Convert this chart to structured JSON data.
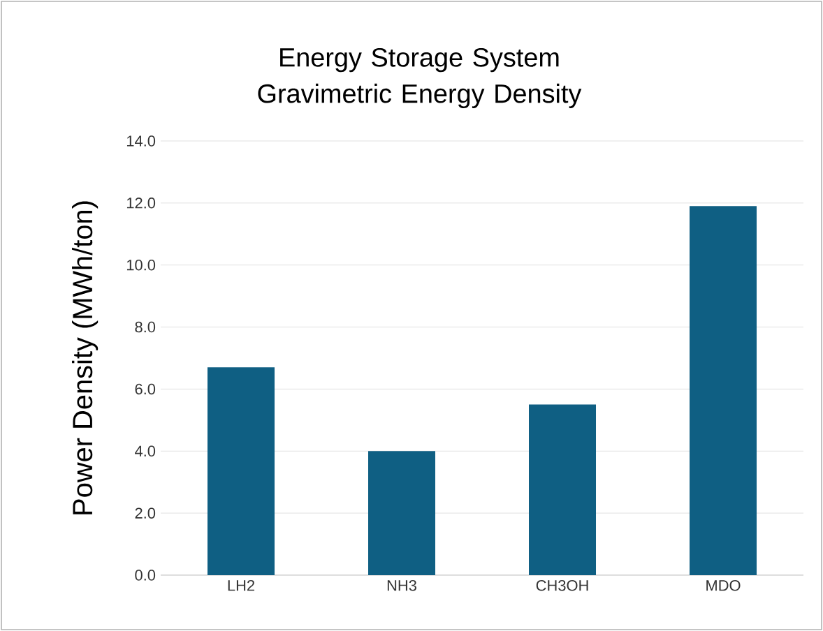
{
  "chart_data": {
    "type": "bar",
    "title": "Energy Storage System Gravimetric Energy Density",
    "ylabel": "Power Density (MWh/ton)",
    "categories": [
      "LH2",
      "NH3",
      "CH3OH",
      "MDO"
    ],
    "values": [
      6.7,
      4.0,
      5.5,
      11.9
    ],
    "color": "#0f5f83",
    "ylim": [
      0,
      14
    ],
    "yticks": [
      {
        "value": 0,
        "label": "0.0"
      },
      {
        "value": 2,
        "label": "2.0"
      },
      {
        "value": 4,
        "label": "4.0"
      },
      {
        "value": 6,
        "label": "6.0"
      },
      {
        "value": 8,
        "label": "8.0"
      },
      {
        "value": 10,
        "label": "10.0"
      },
      {
        "value": 12,
        "label": "12.0"
      },
      {
        "value": 14,
        "label": "14.0"
      }
    ],
    "grid": "y"
  }
}
